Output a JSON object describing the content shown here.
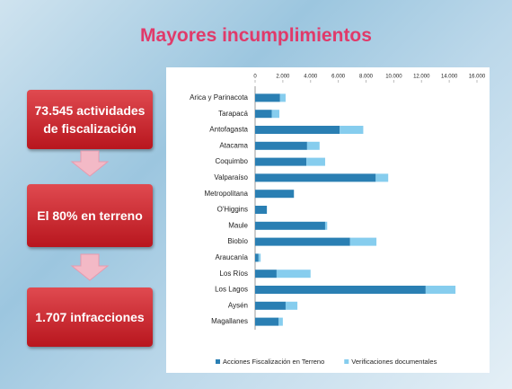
{
  "slide": {
    "title": "Mayores incumplimientos",
    "boxes": [
      "73.545 actividades de fiscalización",
      "El 80% en terreno",
      "1.707 infracciones"
    ]
  },
  "chart_data": {
    "type": "stacked-bar-horizontal",
    "categories": [
      "Arica y Parinacota",
      "Tarapacá",
      "Antofagasta",
      "Atacama",
      "Coquimbo",
      "Valparaíso",
      "Metropolitana",
      "O'Higgins",
      "Maule",
      "Biobío",
      "Araucanía",
      "Los Ríos",
      "Los Lagos",
      "Aysén",
      "Magallanes"
    ],
    "series": [
      {
        "name": "Acciones Fiscalización en Terreno",
        "color": "#2a7fb3",
        "values": [
          1800,
          1200,
          6100,
          3750,
          3700,
          8700,
          2800,
          850,
          5050,
          6850,
          250,
          1550,
          12300,
          2200,
          1700
        ]
      },
      {
        "name": "Verificaciones documentales",
        "color": "#86cdee",
        "values": [
          400,
          550,
          1700,
          900,
          1350,
          900,
          0,
          0,
          150,
          1900,
          150,
          2450,
          2150,
          850,
          300
        ]
      }
    ],
    "xlim": [
      0,
      16000
    ],
    "xticks": [
      0,
      {
        "value": 2000,
        "label": "2.000"
      },
      {
        "value": 4000,
        "label": "4.000"
      },
      {
        "value": 6000,
        "label": "6.000"
      },
      {
        "value": 8000,
        "label": "8.000"
      },
      {
        "value": 10000,
        "label": "10.000"
      },
      {
        "value": 12000,
        "label": "12.000"
      },
      {
        "value": 14000,
        "label": "14.000"
      },
      {
        "value": 16000,
        "label": "16.000"
      }
    ],
    "legend": "bottom"
  }
}
